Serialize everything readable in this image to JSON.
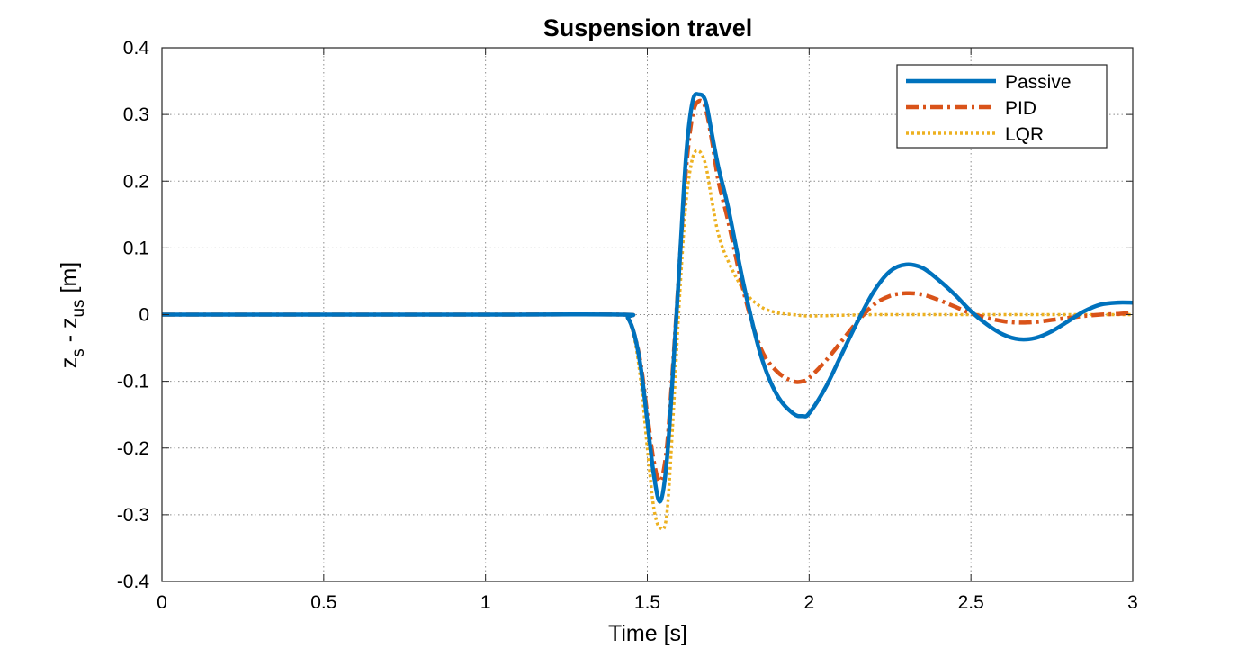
{
  "chart_data": {
    "type": "line",
    "title": "Suspension travel",
    "xlabel": "Time [s]",
    "ylabel": {
      "parts": [
        "z",
        "s",
        " - z",
        "us",
        " [m]"
      ]
    },
    "xlim": [
      0,
      3
    ],
    "ylim": [
      -0.4,
      0.4
    ],
    "xticks": [
      0,
      0.5,
      1,
      1.5,
      2,
      2.5,
      3
    ],
    "xtick_labels": [
      "0",
      "0.5",
      "1",
      "1.5",
      "2",
      "2.5",
      "3"
    ],
    "yticks": [
      -0.4,
      -0.3,
      -0.2,
      -0.1,
      0,
      0.1,
      0.2,
      0.3,
      0.4
    ],
    "ytick_labels": [
      "-0.4",
      "-0.3",
      "-0.2",
      "-0.1",
      "0",
      "0.1",
      "0.2",
      "0.3",
      "0.4"
    ],
    "grid": true,
    "legend_position": "top-right",
    "series": [
      {
        "name": "Passive",
        "color": "#0072BD",
        "style": "solid",
        "x": [
          0,
          0.5,
          1,
          1.42,
          1.44,
          1.46,
          1.48,
          1.5,
          1.52,
          1.54,
          1.56,
          1.58,
          1.6,
          1.62,
          1.64,
          1.66,
          1.68,
          1.7,
          1.72,
          1.75,
          1.8,
          1.85,
          1.9,
          1.95,
          1.98,
          2.0,
          2.05,
          2.1,
          2.15,
          2.2,
          2.25,
          2.3,
          2.35,
          2.4,
          2.45,
          2.5,
          2.55,
          2.6,
          2.65,
          2.7,
          2.75,
          2.8,
          2.85,
          2.9,
          2.95,
          3.0
        ],
        "y": [
          0,
          0,
          0,
          0,
          -0.005,
          -0.03,
          -0.08,
          -0.16,
          -0.24,
          -0.28,
          -0.22,
          -0.08,
          0.08,
          0.24,
          0.32,
          0.33,
          0.32,
          0.27,
          0.22,
          0.16,
          0.04,
          -0.06,
          -0.12,
          -0.148,
          -0.152,
          -0.148,
          -0.11,
          -0.06,
          -0.01,
          0.035,
          0.065,
          0.075,
          0.07,
          0.052,
          0.03,
          0.005,
          -0.015,
          -0.03,
          -0.037,
          -0.035,
          -0.025,
          -0.01,
          0.005,
          0.015,
          0.018,
          0.018
        ]
      },
      {
        "name": "PID",
        "color": "#D95319",
        "style": "dashdot",
        "x": [
          0,
          0.5,
          1,
          1.42,
          1.44,
          1.46,
          1.48,
          1.5,
          1.52,
          1.54,
          1.56,
          1.58,
          1.6,
          1.62,
          1.64,
          1.66,
          1.68,
          1.7,
          1.72,
          1.75,
          1.8,
          1.85,
          1.9,
          1.95,
          1.98,
          2.0,
          2.05,
          2.1,
          2.15,
          2.2,
          2.25,
          2.3,
          2.35,
          2.4,
          2.45,
          2.5,
          2.55,
          2.6,
          2.65,
          2.7,
          2.75,
          2.8,
          2.85,
          2.9,
          2.95,
          3.0
        ],
        "y": [
          0,
          0,
          0,
          0,
          -0.005,
          -0.03,
          -0.075,
          -0.15,
          -0.22,
          -0.25,
          -0.2,
          -0.07,
          0.08,
          0.22,
          0.3,
          0.32,
          0.31,
          0.26,
          0.2,
          0.14,
          0.03,
          -0.05,
          -0.085,
          -0.1,
          -0.1,
          -0.095,
          -0.07,
          -0.04,
          -0.01,
          0.015,
          0.028,
          0.032,
          0.03,
          0.022,
          0.012,
          0.002,
          -0.005,
          -0.01,
          -0.012,
          -0.011,
          -0.008,
          -0.005,
          -0.002,
          0.0,
          0.001,
          0.003
        ]
      },
      {
        "name": "LQR",
        "color": "#EDB120",
        "style": "dotted",
        "x": [
          0,
          0.5,
          1,
          1.42,
          1.44,
          1.46,
          1.48,
          1.5,
          1.52,
          1.54,
          1.56,
          1.58,
          1.6,
          1.62,
          1.64,
          1.66,
          1.68,
          1.7,
          1.72,
          1.75,
          1.8,
          1.85,
          1.9,
          1.95,
          2.0,
          2.1,
          2.2,
          2.3,
          2.4,
          2.5,
          2.6,
          2.7,
          2.8,
          2.9,
          3.0
        ],
        "y": [
          0,
          0,
          0,
          0,
          -0.005,
          -0.035,
          -0.1,
          -0.2,
          -0.29,
          -0.32,
          -0.3,
          -0.15,
          0.03,
          0.17,
          0.235,
          0.245,
          0.225,
          0.17,
          0.12,
          0.08,
          0.035,
          0.012,
          0.003,
          0.0,
          -0.002,
          -0.001,
          0.0,
          0.0,
          0.0,
          0.0,
          0.0,
          0.0,
          0.0,
          0.0,
          0.0
        ]
      }
    ]
  }
}
